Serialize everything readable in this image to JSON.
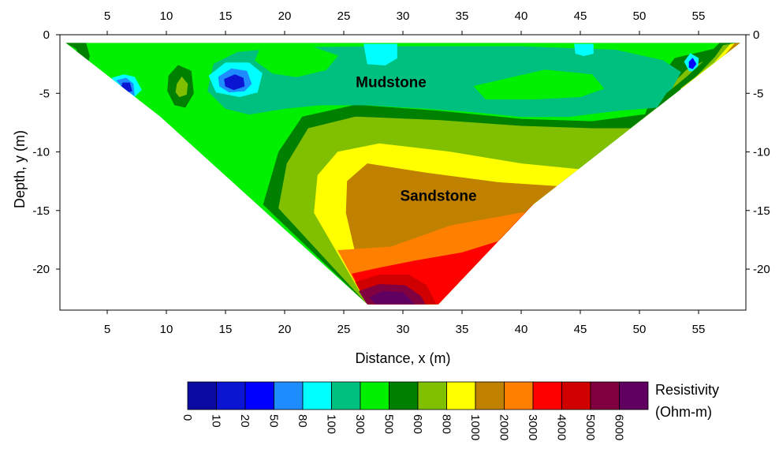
{
  "chart_data": {
    "type": "heatmap",
    "subtype": "filled-contour",
    "xlabel": "Distance, x (m)",
    "ylabel": "Depth, y (m)",
    "xlim": [
      1,
      59
    ],
    "ylim": [
      -23.5,
      0
    ],
    "x_ticks": [
      5,
      10,
      15,
      20,
      25,
      30,
      35,
      40,
      45,
      50,
      55
    ],
    "y_ticks": [
      0,
      -5,
      -10,
      -15,
      -20
    ],
    "x_tick_labels": [
      "5",
      "10",
      "15",
      "20",
      "25",
      "30",
      "35",
      "40",
      "45",
      "50",
      "55"
    ],
    "y_tick_labels": [
      "0",
      "-5",
      "-10",
      "-15",
      "-20"
    ],
    "grid": false,
    "section_outline": [
      [
        1.5,
        -0.7
      ],
      [
        58.5,
        -0.7
      ],
      [
        41,
        -14.5
      ],
      [
        33,
        -23
      ],
      [
        27,
        -23
      ],
      [
        9.5,
        -7
      ]
    ],
    "annotations": [
      {
        "text": "Mudstone",
        "x": 29,
        "y": -4
      },
      {
        "text": "Sandstone",
        "x": 33,
        "y": -13.7
      }
    ],
    "colorbar": {
      "title": [
        "Resistivity",
        "(Ohm-m)"
      ],
      "levels": [
        "0",
        "10",
        "20",
        "50",
        "80",
        "100",
        "300",
        "500",
        "600",
        "800",
        "1000",
        "2000",
        "3000",
        "4000",
        "5000",
        "6000"
      ],
      "colors": [
        "#0a0aa0",
        "#0a14d2",
        "#0000ff",
        "#1e8cff",
        "#00ffff",
        "#00c080",
        "#00f000",
        "#008000",
        "#80c000",
        "#ffff00",
        "#c08000",
        "#ff8000",
        "#ff0000",
        "#d00000",
        "#800040",
        "#600060"
      ]
    },
    "bands": [
      {
        "value_class": "500-600",
        "color": "#00f000",
        "polygon": [
          [
            1.5,
            -0.7
          ],
          [
            58.5,
            -0.7
          ],
          [
            41,
            -14.5
          ],
          [
            33,
            -23
          ],
          [
            27,
            -23
          ],
          [
            9.5,
            -7
          ]
        ]
      },
      {
        "value_class": "600-800",
        "color": "#008000",
        "polygon": [
          [
            18.2,
            -14.5
          ],
          [
            19.5,
            -10
          ],
          [
            21.5,
            -7
          ],
          [
            26,
            -6
          ],
          [
            33,
            -6.5
          ],
          [
            40,
            -7.2
          ],
          [
            46,
            -7.4
          ],
          [
            50.5,
            -6.8
          ],
          [
            51.5,
            -4
          ],
          [
            53,
            -2
          ],
          [
            58.5,
            -0.7
          ],
          [
            41,
            -14.5
          ],
          [
            33,
            -23
          ],
          [
            27,
            -23
          ]
        ]
      },
      {
        "value_class": "800-1000",
        "color": "#80c000",
        "polygon": [
          [
            19.5,
            -14.8
          ],
          [
            20.2,
            -11
          ],
          [
            22,
            -8
          ],
          [
            26,
            -7
          ],
          [
            33,
            -7.3
          ],
          [
            40,
            -7.8
          ],
          [
            46,
            -8
          ],
          [
            51,
            -8
          ],
          [
            52,
            -5
          ],
          [
            54,
            -3
          ],
          [
            58.5,
            -0.7
          ],
          [
            41,
            -14.5
          ],
          [
            33,
            -23
          ],
          [
            27,
            -23
          ]
        ]
      },
      {
        "value_class": "1000-2000",
        "color": "#ffff00",
        "polygon": [
          [
            22.5,
            -15.2
          ],
          [
            22.8,
            -12
          ],
          [
            24.5,
            -10
          ],
          [
            28,
            -9.3
          ],
          [
            34,
            -10
          ],
          [
            40,
            -11
          ],
          [
            45,
            -11.5
          ],
          [
            47,
            -11.6
          ],
          [
            41,
            -14.5
          ],
          [
            33,
            -23
          ],
          [
            27,
            -23
          ]
        ]
      },
      {
        "value_class": "2000-3000",
        "color": "#c08000",
        "polygon": [
          [
            25.2,
            -15.2
          ],
          [
            25.3,
            -12.5
          ],
          [
            27,
            -11
          ],
          [
            32,
            -11.8
          ],
          [
            38,
            -12.6
          ],
          [
            44,
            -13
          ],
          [
            46.3,
            -12.2
          ],
          [
            41,
            -14.5
          ],
          [
            33,
            -23
          ],
          [
            27,
            -23
          ]
        ]
      },
      {
        "value_class": "3000-4000",
        "color": "#ff8000",
        "polygon": [
          [
            24.5,
            -18.4
          ],
          [
            29,
            -18.1
          ],
          [
            34,
            -16.3
          ],
          [
            40,
            -15.2
          ],
          [
            42,
            -15.2
          ],
          [
            41,
            -14.5
          ],
          [
            33,
            -23
          ],
          [
            27,
            -23
          ]
        ]
      },
      {
        "value_class": "4000-5000",
        "color": "#ff0000",
        "polygon": [
          [
            25.7,
            -20.4
          ],
          [
            28,
            -19.9
          ],
          [
            31,
            -19.3
          ],
          [
            35,
            -18.6
          ],
          [
            38.5,
            -17.5
          ],
          [
            41,
            -14.5
          ],
          [
            33,
            -23
          ],
          [
            27,
            -23
          ]
        ]
      },
      {
        "value_class": "5000-6000",
        "color": "#d00000",
        "polygon": [
          [
            26,
            -21.1
          ],
          [
            28,
            -20.5
          ],
          [
            30.5,
            -20.5
          ],
          [
            32,
            -21.4
          ],
          [
            32.8,
            -23
          ],
          [
            27,
            -23
          ]
        ]
      },
      {
        "value_class": "6000+",
        "color": "#800040",
        "polygon": [
          [
            26.3,
            -21.9
          ],
          [
            28,
            -21.3
          ],
          [
            30.2,
            -21.4
          ],
          [
            31.5,
            -22.3
          ],
          [
            31.9,
            -23
          ],
          [
            27,
            -23
          ]
        ]
      },
      {
        "value_class": "6000+",
        "color": "#600060",
        "polygon": [
          [
            27.2,
            -22.4
          ],
          [
            28.3,
            -21.9
          ],
          [
            30,
            -22
          ],
          [
            31,
            -23
          ],
          [
            27.7,
            -23
          ]
        ]
      },
      {
        "value_class": "300-500",
        "color": "#00c080",
        "polygon": [
          [
            13.5,
            -4.8
          ],
          [
            14,
            -2.5
          ],
          [
            16,
            -1.5
          ],
          [
            20,
            -1.1
          ],
          [
            28,
            -1
          ],
          [
            40,
            -1
          ],
          [
            48,
            -1.3
          ],
          [
            52,
            -2.2
          ],
          [
            53.5,
            -3.2
          ],
          [
            52.5,
            -5
          ],
          [
            51.5,
            -6.2
          ],
          [
            48,
            -6.5
          ],
          [
            44,
            -7
          ],
          [
            40,
            -7
          ],
          [
            36,
            -6.6
          ],
          [
            32,
            -6.3
          ],
          [
            27,
            -6
          ],
          [
            23,
            -6
          ],
          [
            20,
            -6.3
          ],
          [
            17,
            -6.8
          ],
          [
            15,
            -6.3
          ]
        ]
      },
      {
        "value_class": "500-600",
        "color": "#00f000",
        "polygon": [
          [
            39,
            -3.7
          ],
          [
            42,
            -3
          ],
          [
            46,
            -3.4
          ],
          [
            47,
            -4.6
          ],
          [
            45,
            -5.3
          ],
          [
            41,
            -5.5
          ],
          [
            37,
            -5.5
          ],
          [
            36,
            -4.4
          ]
        ]
      },
      {
        "value_class": "500-600",
        "color": "#00f000",
        "polygon": [
          [
            18,
            -1
          ],
          [
            22,
            -0.9
          ],
          [
            24.5,
            -1.8
          ],
          [
            23.5,
            -3
          ],
          [
            21,
            -3.6
          ],
          [
            19,
            -3.3
          ],
          [
            17.5,
            -2.2
          ]
        ]
      },
      {
        "value_class": "80-100",
        "color": "#00ffff",
        "polygon": [
          [
            26.7,
            -0.8
          ],
          [
            29.5,
            -0.8
          ],
          [
            29.5,
            -2
          ],
          [
            28.5,
            -2.6
          ],
          [
            27,
            -2.5
          ]
        ]
      },
      {
        "value_class": "80-100",
        "color": "#00ffff",
        "polygon": [
          [
            44.5,
            -0.8
          ],
          [
            46.1,
            -0.8
          ],
          [
            46.1,
            -1.6
          ],
          [
            45.3,
            -1.8
          ],
          [
            44.6,
            -1.6
          ]
        ]
      },
      {
        "value_class": "600-800",
        "color": "#008000",
        "polygon": [
          [
            10.2,
            -3.5
          ],
          [
            11,
            -2.6
          ],
          [
            12.1,
            -3.1
          ],
          [
            12.3,
            -5
          ],
          [
            11.6,
            -6.2
          ],
          [
            10.7,
            -6
          ],
          [
            10.1,
            -4.8
          ]
        ]
      },
      {
        "value_class": "800-1000",
        "color": "#80c000",
        "polygon": [
          [
            10.9,
            -4.2
          ],
          [
            11.3,
            -3.6
          ],
          [
            11.8,
            -4.2
          ],
          [
            11.7,
            -5.1
          ],
          [
            11.1,
            -5.3
          ],
          [
            10.8,
            -4.9
          ]
        ]
      },
      {
        "value_class": "80-100",
        "color": "#00ffff",
        "polygon": [
          [
            13.6,
            -3.5
          ],
          [
            15,
            -2.4
          ],
          [
            17,
            -2.4
          ],
          [
            18.1,
            -3.3
          ],
          [
            17.7,
            -4.9
          ],
          [
            16.2,
            -5.3
          ],
          [
            14.2,
            -4.9
          ]
        ]
      },
      {
        "value_class": "50-80",
        "color": "#1e8cff",
        "polygon": [
          [
            14.4,
            -3.6
          ],
          [
            15.5,
            -2.9
          ],
          [
            16.8,
            -3.1
          ],
          [
            17.2,
            -4.2
          ],
          [
            16.6,
            -4.8
          ],
          [
            15.3,
            -4.9
          ],
          [
            14.5,
            -4.4
          ]
        ]
      },
      {
        "value_class": "10-20",
        "color": "#0a14d2",
        "polygon": [
          [
            14.9,
            -3.8
          ],
          [
            15.8,
            -3.4
          ],
          [
            16.5,
            -3.7
          ],
          [
            16.6,
            -4.4
          ],
          [
            15.7,
            -4.7
          ],
          [
            15,
            -4.4
          ]
        ]
      },
      {
        "value_class": "80-100",
        "color": "#00ffff",
        "polygon": [
          [
            5.4,
            -3.7
          ],
          [
            6.4,
            -3.4
          ],
          [
            7.3,
            -3.6
          ],
          [
            7.9,
            -4.7
          ],
          [
            7.2,
            -5.4
          ],
          [
            5.9,
            -4.6
          ]
        ]
      },
      {
        "value_class": "50-80",
        "color": "#1e8cff",
        "polygon": [
          [
            5.8,
            -3.9
          ],
          [
            6.6,
            -3.7
          ],
          [
            7.2,
            -4.2
          ],
          [
            7.3,
            -5.2
          ],
          [
            6.4,
            -4.6
          ]
        ]
      },
      {
        "value_class": "10-20",
        "color": "#0a14d2",
        "polygon": [
          [
            6.3,
            -4.1
          ],
          [
            6.9,
            -4.1
          ],
          [
            7.1,
            -4.8
          ],
          [
            6.7,
            -4.9
          ],
          [
            6.2,
            -4.5
          ]
        ]
      },
      {
        "value_class": "600-800",
        "color": "#008000",
        "polygon": [
          [
            1.5,
            -0.7
          ],
          [
            3.2,
            -0.7
          ],
          [
            3.5,
            -1.8
          ],
          [
            3.4,
            -2.3
          ],
          [
            2.7,
            -2.3
          ],
          [
            2.4,
            -1.2
          ]
        ]
      },
      {
        "value_class": "80-100",
        "color": "#00ffff",
        "polygon": [
          [
            53.8,
            -2.3
          ],
          [
            54.3,
            -1.6
          ],
          [
            55,
            -2
          ],
          [
            54.9,
            -3.1
          ],
          [
            54.2,
            -3.1
          ]
        ]
      },
      {
        "value_class": "20-50",
        "color": "#0000ff",
        "polygon": [
          [
            54.2,
            -2.3
          ],
          [
            54.5,
            -2
          ],
          [
            54.8,
            -2.5
          ],
          [
            54.5,
            -2.9
          ],
          [
            54.2,
            -2.8
          ]
        ]
      },
      {
        "value_class": "600-800",
        "color": "#008000",
        "polygon": [
          [
            52.3,
            -5
          ],
          [
            54,
            -3.6
          ],
          [
            55.3,
            -2.4
          ],
          [
            56.3,
            -1.2
          ],
          [
            56.8,
            -0.7
          ],
          [
            58.5,
            -0.7
          ],
          [
            51,
            -7
          ]
        ]
      },
      {
        "value_class": "800-1000",
        "color": "#80c000",
        "polygon": [
          [
            52.5,
            -5.7
          ],
          [
            54.6,
            -3.8
          ],
          [
            56.4,
            -1.9
          ],
          [
            57.1,
            -0.9
          ],
          [
            58.5,
            -0.7
          ],
          [
            51.6,
            -6.2
          ]
        ]
      },
      {
        "value_class": "1000-2000",
        "color": "#ffff00",
        "polygon": [
          [
            53.8,
            -5
          ],
          [
            55.3,
            -3.6
          ],
          [
            57,
            -1.6
          ],
          [
            57.7,
            -0.8
          ],
          [
            58.5,
            -0.7
          ],
          [
            53.5,
            -4.6
          ]
        ]
      },
      {
        "value_class": "2000-3000",
        "color": "#c08000",
        "polygon": [
          [
            55.2,
            -4.1
          ],
          [
            56.4,
            -2.7
          ],
          [
            57.6,
            -1.3
          ],
          [
            58.1,
            -0.7
          ],
          [
            58.5,
            -0.7
          ],
          [
            54.8,
            -4.4
          ]
        ]
      }
    ]
  }
}
